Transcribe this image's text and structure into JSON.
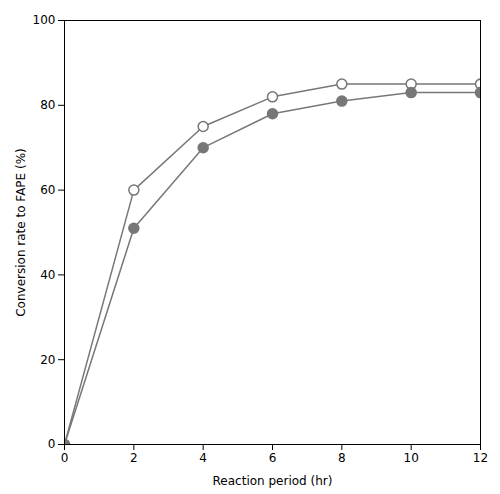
{
  "chart_data": {
    "type": "line",
    "xlabel": "Reaction period (hr)",
    "ylabel": "Conversion rate to FAPE (%)",
    "x": [
      0,
      2,
      4,
      6,
      8,
      10,
      12
    ],
    "series": [
      {
        "color": "#777777",
        "marker": "open_circle",
        "values": [
          0,
          60,
          75,
          82,
          85,
          85,
          85
        ]
      },
      {
        "color": "#777777",
        "marker": "circle",
        "values": [
          0,
          51,
          70,
          78,
          81,
          83,
          83
        ]
      }
    ],
    "xlim": [
      0,
      12
    ],
    "xticks": [
      0,
      2,
      4,
      6,
      8,
      10,
      12
    ],
    "ylim": [
      0,
      100
    ],
    "yticks": [
      0,
      20,
      40,
      60,
      80,
      100
    ],
    "grid": false
  }
}
